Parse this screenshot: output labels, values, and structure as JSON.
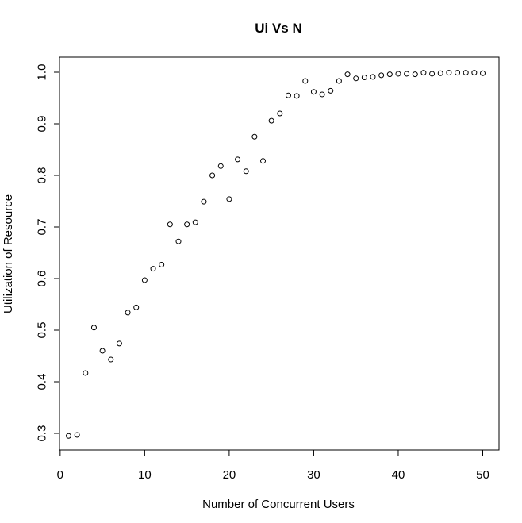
{
  "chart_data": {
    "type": "scatter",
    "title": "Ui Vs N",
    "xlabel": "Number of Concurrent Users",
    "ylabel": "Utilization of Resource",
    "xlim": [
      0,
      52
    ],
    "ylim": [
      0.28,
      1.03
    ],
    "xticks": [
      0,
      10,
      20,
      30,
      40,
      50
    ],
    "yticks": [
      0.3,
      0.4,
      0.5,
      0.6,
      0.7,
      0.8,
      0.9,
      1.0
    ],
    "xtick_labels": [
      "0",
      "10",
      "20",
      "30",
      "40",
      "50"
    ],
    "ytick_labels": [
      "0.3",
      "0.4",
      "0.5",
      "0.6",
      "0.7",
      "0.8",
      "0.9",
      "1.0"
    ],
    "grid": false,
    "legend": "none",
    "marker": "open-circle",
    "series": [
      {
        "x": [
          1,
          2,
          3,
          4,
          5,
          6,
          7,
          8,
          9,
          10,
          11,
          12,
          13,
          14,
          15,
          16,
          17,
          18,
          19,
          20,
          21,
          22,
          23,
          24,
          25,
          26,
          27,
          28,
          29,
          30,
          31,
          32,
          33,
          34,
          35,
          36,
          37,
          38,
          39,
          40,
          41,
          42,
          43,
          44,
          45,
          46,
          47,
          48,
          49,
          50
        ],
        "y": [
          0.295,
          0.297,
          0.417,
          0.505,
          0.46,
          0.443,
          0.474,
          0.534,
          0.544,
          0.597,
          0.619,
          0.627,
          0.705,
          0.672,
          0.705,
          0.709,
          0.749,
          0.8,
          0.818,
          0.754,
          0.831,
          0.808,
          0.875,
          0.828,
          0.906,
          0.92,
          0.955,
          0.954,
          0.983,
          0.962,
          0.957,
          0.964,
          0.983,
          0.996,
          0.988,
          0.99,
          0.991,
          0.994,
          0.996,
          0.997,
          0.997,
          0.996,
          0.999,
          0.997,
          0.998,
          0.999,
          0.999,
          0.999,
          0.999,
          0.998
        ]
      }
    ]
  }
}
